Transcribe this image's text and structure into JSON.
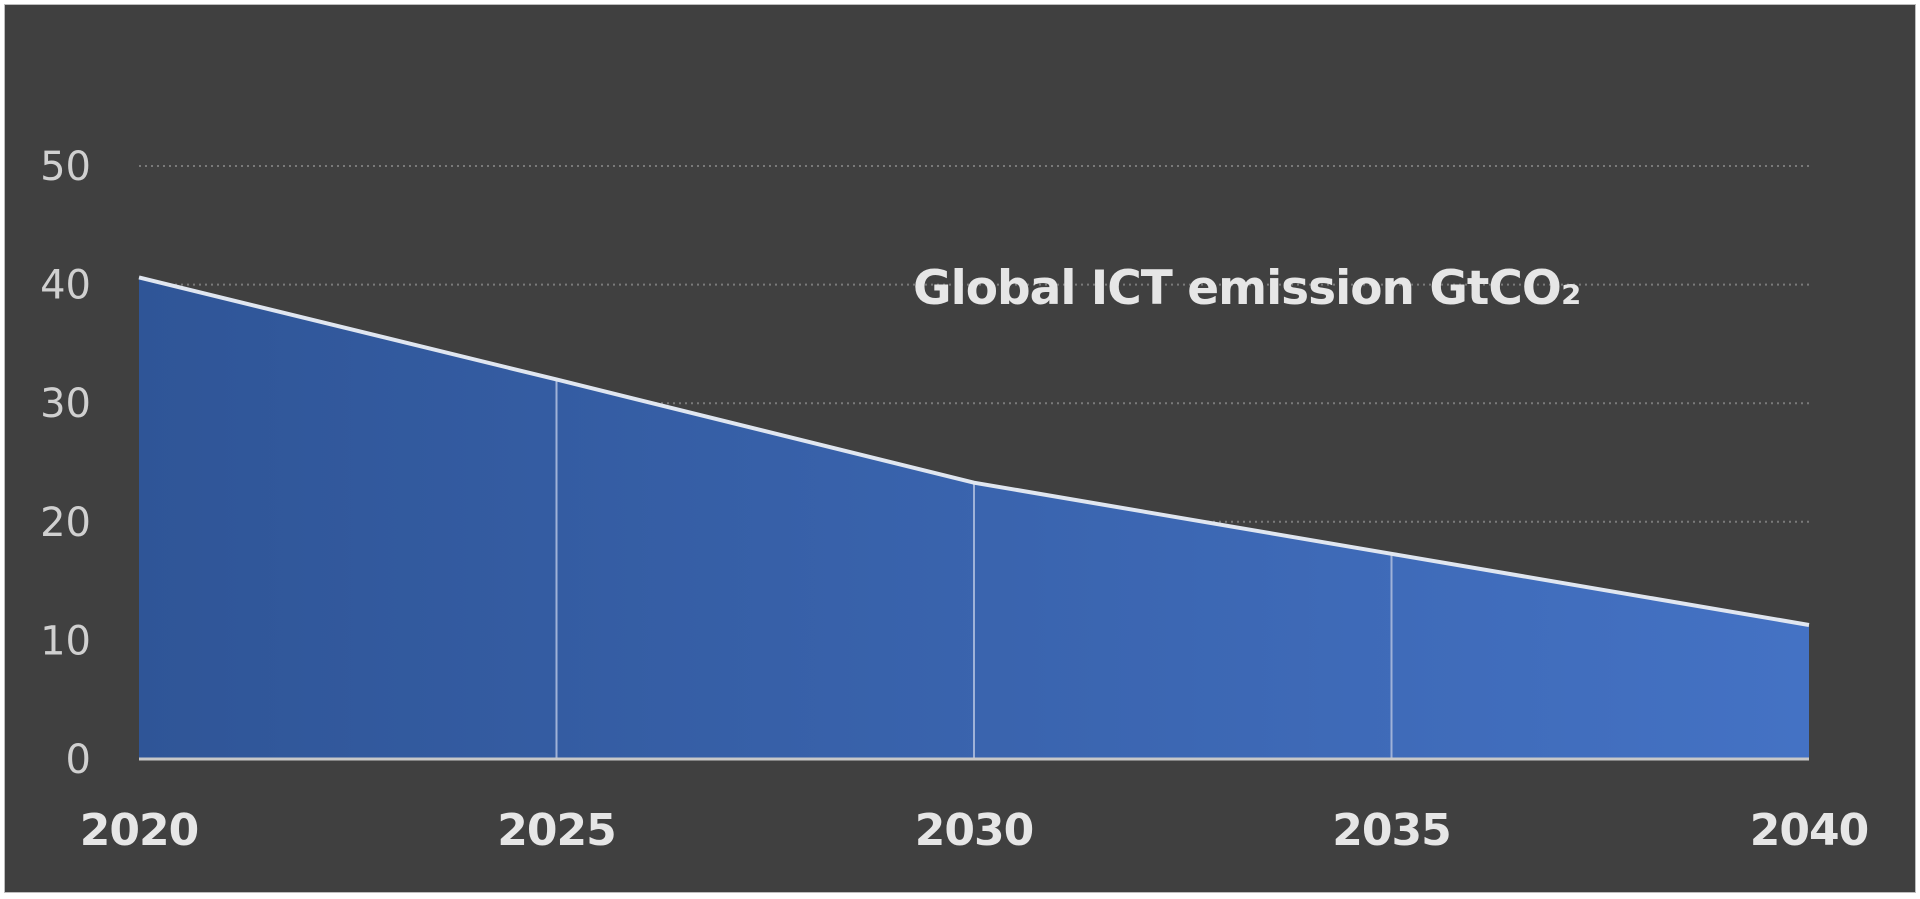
{
  "chart_data": {
    "type": "area",
    "title": "Global ICT emission GtCO₂",
    "categories": [
      "2020",
      "2025",
      "2030",
      "2035",
      "2040"
    ],
    "series": [
      {
        "values": [
          40.6,
          32.0,
          23.3,
          17.3,
          11.3
        ]
      }
    ],
    "xlabel": "",
    "ylabel": "",
    "ylim": [
      0,
      50
    ],
    "yticks": [
      0,
      10,
      20,
      30,
      40,
      50
    ],
    "grid": "horizontal dotted",
    "legend": "none",
    "colors": {
      "background": "#404040",
      "fill_start": "#2f5597",
      "fill_end": "#4472c4",
      "line": "#e0e6f0",
      "text": "#d0d0d0",
      "grid": "#7a7a7a"
    }
  }
}
